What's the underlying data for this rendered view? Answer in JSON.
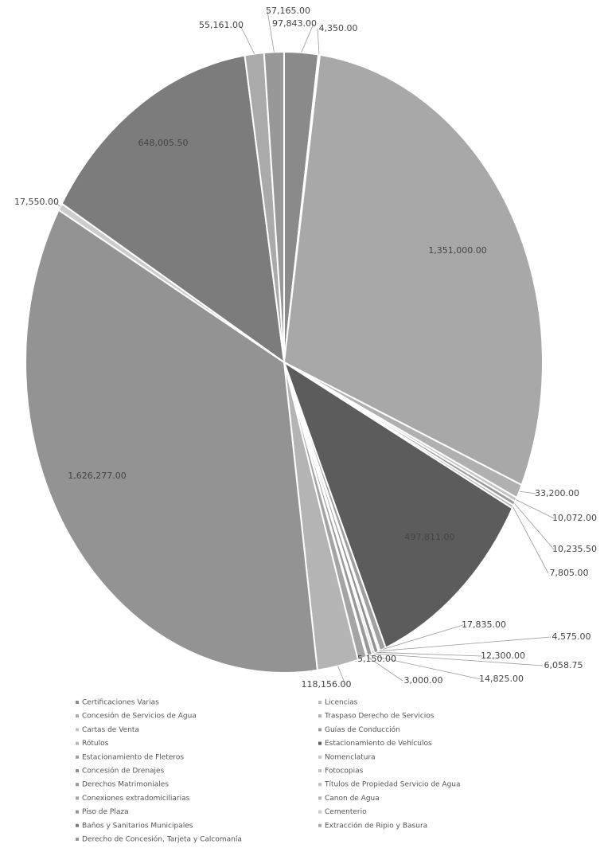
{
  "chart_data": {
    "type": "pie",
    "categories": [
      "Certificaciones Varias",
      "Licencias",
      "Concesión de Servicios de Agua",
      "Traspaso Derecho de Servicios",
      "Cartas de Venta",
      "Guías de Conducción",
      "Rótulos",
      "Estacionamiento de Vehículos",
      "Estacionamiento de Fleteros",
      "Nomenclatura",
      "Concesión de Drenajes",
      "Fotocopias",
      "Derechos Matrimoniales",
      "Títulos de Propiedad Servicio de Agua",
      "Conexiones extradomiciliarias",
      "Canon de Agua",
      "Piso de Plaza",
      "Cementerio",
      "Baños y Sanitarios Municipales",
      "Extracción de Ripio y Basura",
      "Derecho de Concesión, Tarjeta y Calcomanía"
    ],
    "values": [
      97843,
      4350,
      1351000,
      33200,
      10072,
      10235.5,
      7805,
      497811,
      17835,
      4575,
      12300,
      6058.75,
      14825,
      3000,
      25150,
      118156,
      1626277,
      17550,
      648005.5,
      55161,
      57165
    ],
    "value_labels": [
      "97,843.00",
      "4,350.00",
      "1,351,000.00",
      "33,200.00",
      "10,072.00",
      "10,235.50",
      "7,805.00",
      "497,811.00",
      "17,835.00",
      "4,575.00",
      "12,300.00",
      "6,058.75",
      "14,825.00",
      "3,000.00",
      "25,150.00",
      "118,156.00",
      "1,626,277.00",
      "17,550.00",
      "648,005.50",
      "55,161.00",
      "57,165.00"
    ],
    "colors": [
      "#8a8a8a",
      "#bdbdbd",
      "#a8a8a8",
      "#b0b0b0",
      "#c4c4c4",
      "#9c9c9c",
      "#b8b8b8",
      "#5c5c5c",
      "#a0a0a0",
      "#c8c8c8",
      "#909090",
      "#bcbcbc",
      "#999999",
      "#c0c0c0",
      "#a4a4a4",
      "#b4b4b4",
      "#939393",
      "#cccccc",
      "#7c7c7c",
      "#aaaaaa",
      "#989898"
    ],
    "legend": "bottom"
  }
}
